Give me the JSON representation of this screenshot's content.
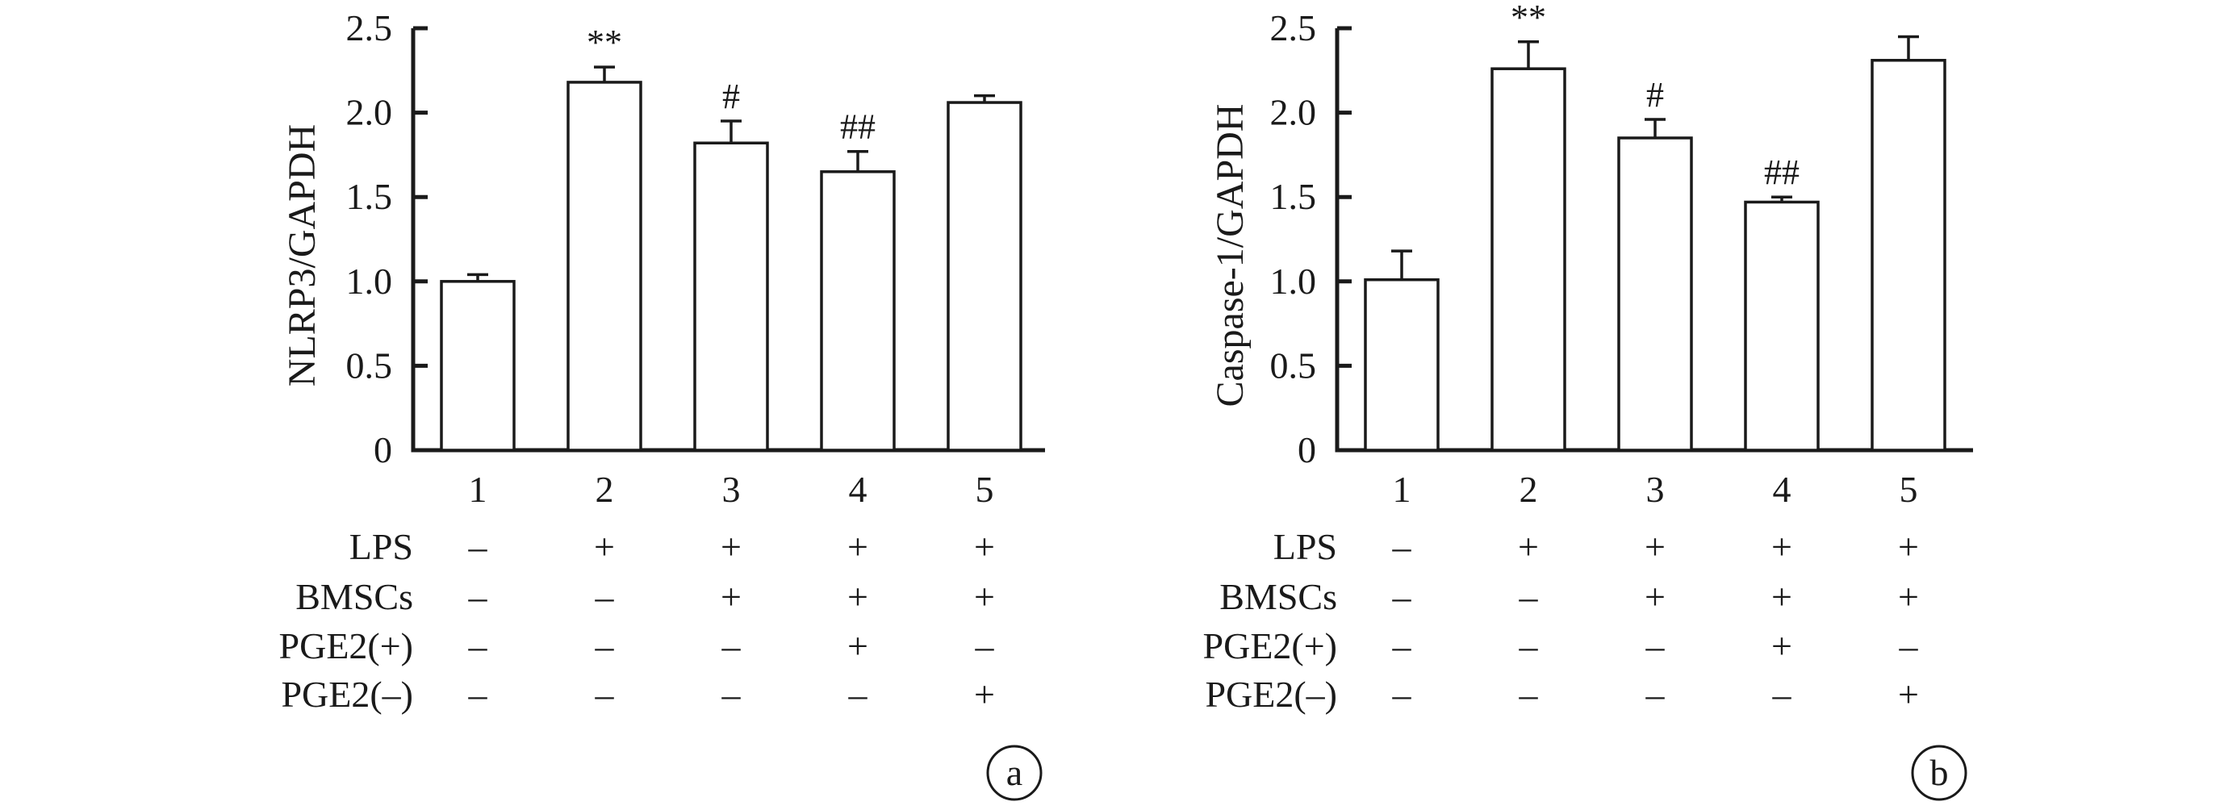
{
  "chart_data": [
    {
      "type": "bar",
      "panel_label": "a",
      "ylabel": "NLRP3/GAPDH",
      "ylim": [
        0,
        2.5
      ],
      "yticks": [
        "0",
        "0.5",
        "1.0",
        "1.5",
        "2.0",
        "2.5"
      ],
      "categories": [
        "1",
        "2",
        "3",
        "4",
        "5"
      ],
      "values": [
        1.0,
        2.18,
        1.82,
        1.65,
        2.06
      ],
      "errors": [
        0.04,
        0.09,
        0.13,
        0.12,
        0.04
      ],
      "significance": [
        "",
        "**",
        "#",
        "##",
        ""
      ],
      "conditions": [
        {
          "label": "LPS",
          "signs": [
            "–",
            "+",
            "+",
            "+",
            "+"
          ]
        },
        {
          "label": "BMSCs",
          "signs": [
            "–",
            "–",
            "+",
            "+",
            "+"
          ]
        },
        {
          "label": "PGE2(+)",
          "signs": [
            "–",
            "–",
            "–",
            "+",
            "–"
          ]
        },
        {
          "label": "PGE2(–)",
          "signs": [
            "–",
            "–",
            "–",
            "–",
            "+"
          ]
        }
      ]
    },
    {
      "type": "bar",
      "panel_label": "b",
      "ylabel": "Caspase-1/GAPDH",
      "ylim": [
        0,
        2.5
      ],
      "yticks": [
        "0",
        "0.5",
        "1.0",
        "1.5",
        "2.0",
        "2.5"
      ],
      "categories": [
        "1",
        "2",
        "3",
        "4",
        "5"
      ],
      "values": [
        1.01,
        2.26,
        1.85,
        1.47,
        2.31
      ],
      "errors": [
        0.17,
        0.16,
        0.11,
        0.03,
        0.14
      ],
      "significance": [
        "",
        "**",
        "#",
        "##",
        ""
      ],
      "conditions": [
        {
          "label": "LPS",
          "signs": [
            "–",
            "+",
            "+",
            "+",
            "+"
          ]
        },
        {
          "label": "BMSCs",
          "signs": [
            "–",
            "–",
            "+",
            "+",
            "+"
          ]
        },
        {
          "label": "PGE2(+)",
          "signs": [
            "–",
            "–",
            "–",
            "+",
            "–"
          ]
        },
        {
          "label": "PGE2(–)",
          "signs": [
            "–",
            "–",
            "–",
            "–",
            "+"
          ]
        }
      ]
    }
  ]
}
